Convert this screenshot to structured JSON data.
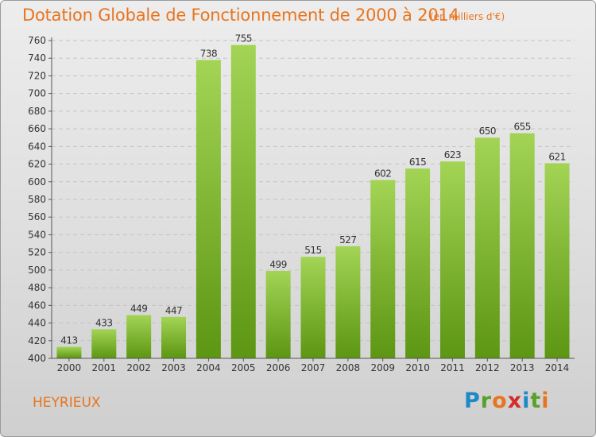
{
  "header": {
    "title": "Dotation Globale de Fonctionnement de 2000 à 2014",
    "unit": "(en milliers d'€)"
  },
  "footer": {
    "commune": "HEYRIEUX",
    "brand": "Proxiti",
    "brand_letters": [
      "P",
      "r",
      "o",
      "x",
      "i",
      "t",
      "i"
    ],
    "brand_colors": [
      "#1e88c8",
      "#5aa02c",
      "#e8741e",
      "#d62a2a",
      "#1e88c8",
      "#5aa02c",
      "#e8741e"
    ]
  },
  "colors": {
    "accent": "#e8741e",
    "bar_light": "#9ccf4b",
    "bar_dark": "#5f9a15"
  },
  "chart_data": {
    "type": "bar",
    "title": "Dotation Globale de Fonctionnement de 2000 à 2014",
    "categories": [
      "2000",
      "2001",
      "2002",
      "2003",
      "2004",
      "2005",
      "2006",
      "2007",
      "2008",
      "2009",
      "2010",
      "2011",
      "2012",
      "2013",
      "2014"
    ],
    "values": [
      413,
      433,
      449,
      447,
      738,
      755,
      499,
      515,
      527,
      602,
      615,
      623,
      650,
      655,
      621
    ],
    "ylim": [
      400,
      760
    ],
    "yticks": [
      400,
      420,
      440,
      460,
      480,
      500,
      520,
      540,
      560,
      580,
      600,
      620,
      640,
      660,
      680,
      700,
      720,
      740,
      760
    ],
    "grid": true,
    "xlabel": "",
    "ylabel": ""
  }
}
